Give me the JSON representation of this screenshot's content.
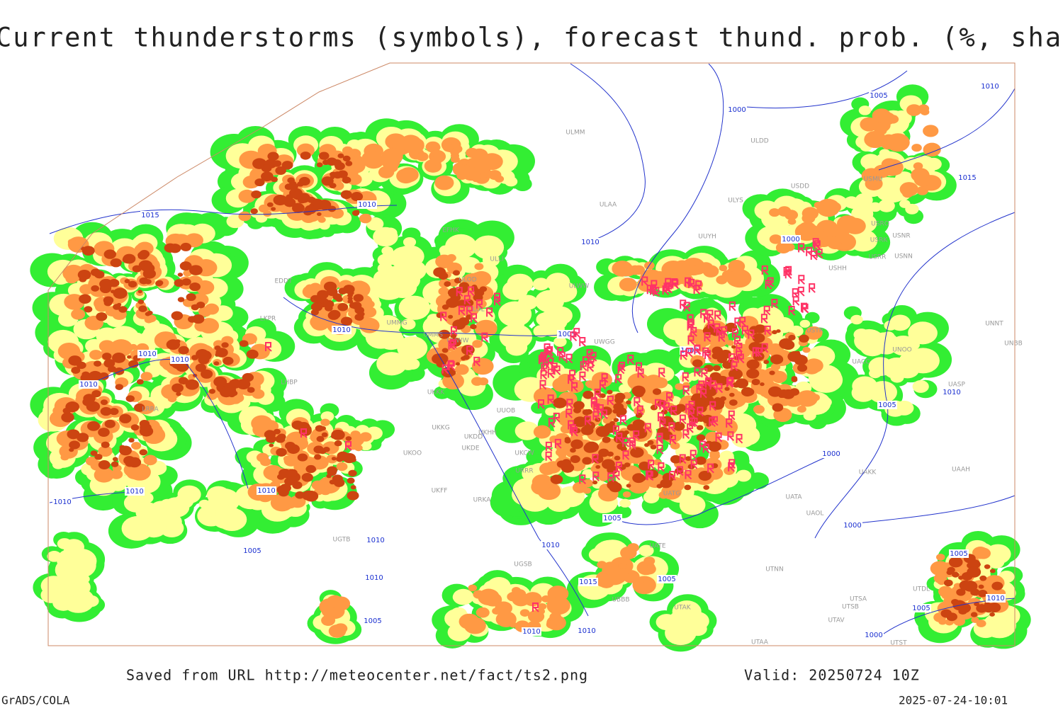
{
  "title": "Current thunderstorms (symbols), forecast thund. prob. (%, shaded)",
  "footer": {
    "source": "Saved from URL http://meteocenter.net/fact/ts2.png",
    "valid": "Valid: 20250724 10Z",
    "software": "GrADS/COLA",
    "timestamp": "2025-07-24-10:01"
  },
  "isobar_labels": [
    "1010",
    "1005",
    "1000",
    "1015",
    "1010",
    "1015",
    "1010",
    "1000",
    "1010",
    "1005",
    "1010",
    "1010",
    "1000",
    "1010",
    "1010",
    "1005",
    "1000",
    "1010",
    "1010",
    "1010",
    "1005",
    "1010",
    "1010",
    "1000",
    "1005",
    "1005",
    "1010",
    "1015",
    "1005",
    "1005",
    "1010",
    "1010",
    "1005",
    "1010",
    "1000"
  ],
  "station_labels": [
    "ULMM",
    "ULDD",
    "USMU",
    "USDD",
    "ULAA",
    "ULYS",
    "USRO",
    "USRK",
    "USNR",
    "UUYH",
    "USRR",
    "USNN",
    "EFHK",
    "ULLI",
    "USHH",
    "ULOD",
    "ULWW",
    "EDDT",
    "LKPR",
    "UMMG",
    "ULOL",
    "UUWW",
    "UMMS",
    "UWGG",
    "USTR",
    "UNNT",
    "UNBB",
    "UNOO",
    "LHBP",
    "UKKK",
    "UACC",
    "UASP",
    "LRRA",
    "UKHH",
    "UKOO",
    "UKDD",
    "UKDE",
    "UKKG",
    "UKFF",
    "URKA",
    "URRR",
    "UKCW",
    "UUOB",
    "UAKK",
    "UAAH",
    "UATG",
    "UATA",
    "UAOL",
    "UGSB",
    "UTAA",
    "UTNN",
    "UATE",
    "UTSA",
    "UTSB",
    "UTAV",
    "UTST",
    "UTDL",
    "UTAK",
    "UBBB",
    "UGTB"
  ]
}
